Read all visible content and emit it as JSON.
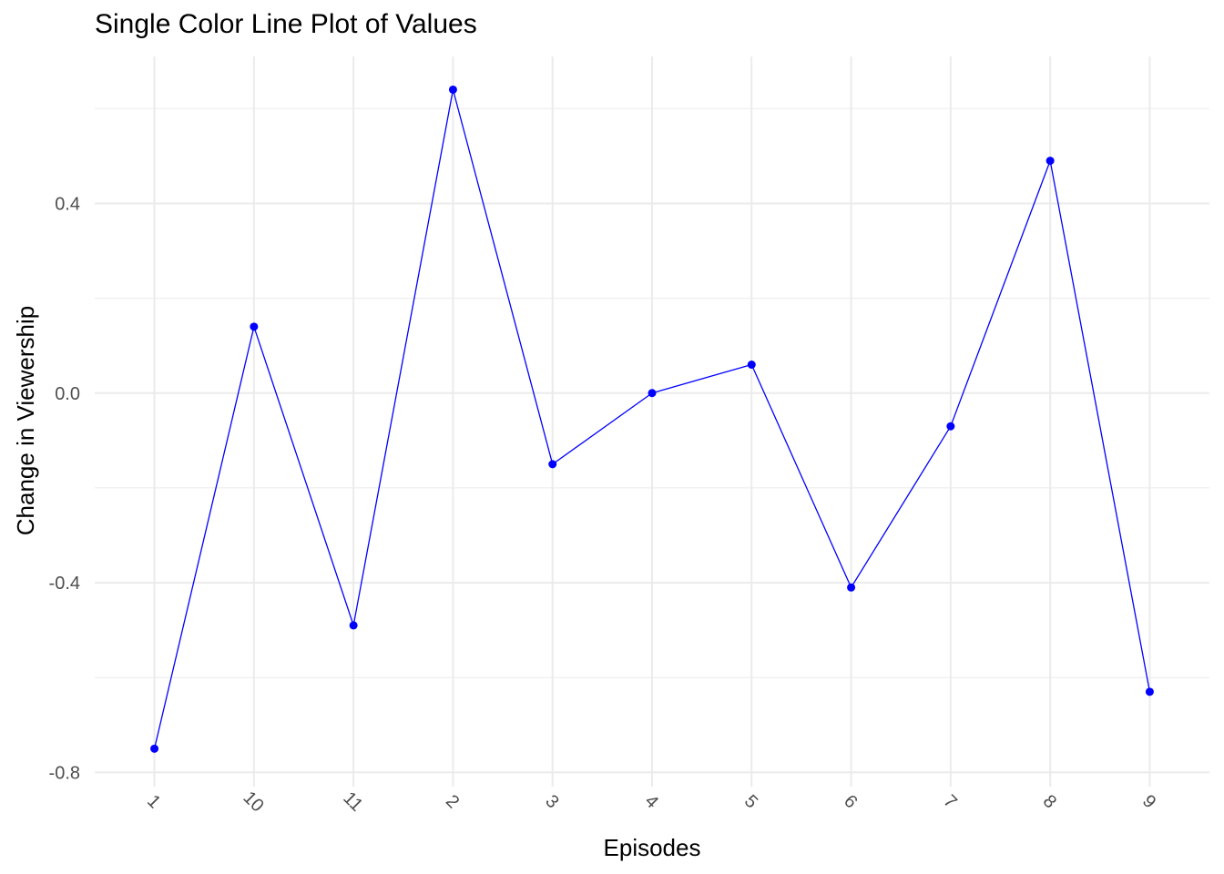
{
  "chart_data": {
    "type": "line",
    "title": "Single Color Line Plot of Values",
    "xlabel": "Episodes",
    "ylabel": "Change in Viewership",
    "categories": [
      "1",
      "10",
      "11",
      "2",
      "3",
      "4",
      "5",
      "6",
      "7",
      "8",
      "9"
    ],
    "series": [
      {
        "values": [
          -0.75,
          0.14,
          -0.49,
          0.64,
          -0.15,
          0.0,
          0.06,
          -0.41,
          -0.07,
          0.49,
          -0.63
        ]
      }
    ],
    "ylim": [
      -0.83,
      0.71
    ],
    "yticks": [
      -0.8,
      -0.4,
      0.0,
      0.4
    ],
    "ytick_labels": [
      "-0.8",
      "-0.4",
      "0.0",
      "0.4"
    ],
    "grid": true,
    "legend": "none",
    "colors": {
      "series": "#0000ff",
      "grid": "#ebebeb",
      "tick_text": "#4d4d4d"
    }
  }
}
